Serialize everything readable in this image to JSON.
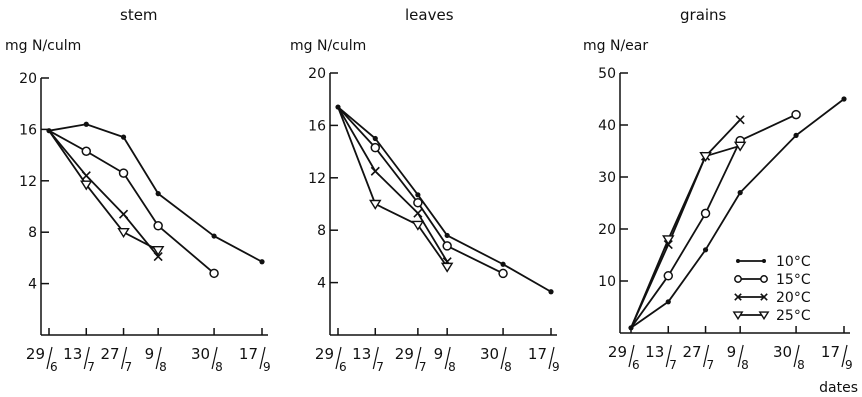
{
  "chart_data": [
    {
      "type": "line",
      "title": "stem",
      "ylabel": "mg N/culm",
      "ylim": [
        0,
        20
      ],
      "yticks": [
        4,
        8,
        12,
        16,
        20
      ],
      "x_tick_labels": [
        [
          "29",
          "6"
        ],
        [
          "13",
          "7"
        ],
        [
          "27",
          "7"
        ],
        [
          "9",
          "8"
        ],
        [
          "30",
          "8"
        ],
        [
          "17",
          "9"
        ]
      ],
      "series": [
        {
          "name": "10°C",
          "marker": "dot",
          "x": [
            "29/6",
            "13/7",
            "27/7",
            "9/8",
            "30/8",
            "17/9"
          ],
          "values": [
            15.9,
            16.4,
            15.4,
            11.0,
            7.7,
            5.7
          ]
        },
        {
          "name": "15°C",
          "marker": "circle",
          "x": [
            "29/6",
            "13/7",
            "27/7",
            "9/8",
            "30/8"
          ],
          "values": [
            15.9,
            14.3,
            12.6,
            8.5,
            4.8
          ]
        },
        {
          "name": "20°C",
          "marker": "cross",
          "x": [
            "29/6",
            "13/7",
            "27/7",
            "9/8"
          ],
          "values": [
            15.9,
            12.4,
            9.4,
            6.1
          ]
        },
        {
          "name": "25°C",
          "marker": "triangle-down",
          "x": [
            "29/6",
            "13/7",
            "27/7",
            "9/8"
          ],
          "values": [
            15.9,
            11.7,
            8.0,
            6.6
          ]
        }
      ]
    },
    {
      "type": "line",
      "title": "leaves",
      "ylabel": "mg N/culm",
      "ylim": [
        0,
        20
      ],
      "yticks": [
        4,
        8,
        12,
        16,
        20
      ],
      "x_tick_labels": [
        [
          "29",
          "6"
        ],
        [
          "13",
          "7"
        ],
        [
          "29",
          "7"
        ],
        [
          "9",
          "8"
        ],
        [
          "30",
          "8"
        ],
        [
          "17",
          "9"
        ]
      ],
      "series": [
        {
          "name": "10°C",
          "marker": "dot",
          "x": [
            "29/6",
            "13/7",
            "29/7",
            "9/8",
            "30/8",
            "17/9"
          ],
          "values": [
            17.4,
            15.0,
            10.7,
            7.6,
            5.4,
            3.3
          ]
        },
        {
          "name": "15°C",
          "marker": "circle",
          "x": [
            "29/6",
            "13/7",
            "29/7",
            "9/8",
            "30/8"
          ],
          "values": [
            17.4,
            14.3,
            10.1,
            6.8,
            4.7
          ]
        },
        {
          "name": "20°C",
          "marker": "cross",
          "x": [
            "29/6",
            "13/7",
            "29/7",
            "9/8"
          ],
          "values": [
            17.4,
            12.5,
            9.3,
            5.6
          ]
        },
        {
          "name": "25°C",
          "marker": "triangle-down",
          "x": [
            "29/6",
            "13/7",
            "29/7",
            "9/8"
          ],
          "values": [
            17.4,
            10.0,
            8.4,
            5.2
          ]
        }
      ]
    },
    {
      "type": "line",
      "title": "grains",
      "ylabel": "mg N/ear",
      "xlabel": "dates",
      "ylim": [
        0,
        50
      ],
      "yticks": [
        10,
        20,
        30,
        40,
        50
      ],
      "x_tick_labels": [
        [
          "29",
          "6"
        ],
        [
          "13",
          "7"
        ],
        [
          "27",
          "7"
        ],
        [
          "9",
          "8"
        ],
        [
          "30",
          "8"
        ],
        [
          "17",
          "9"
        ]
      ],
      "legend": {
        "position": "right"
      },
      "series": [
        {
          "name": "10°C",
          "marker": "dot",
          "x": [
            "29/6",
            "13/7",
            "27/7",
            "9/8",
            "30/8",
            "17/9"
          ],
          "values": [
            1,
            6,
            16,
            27,
            38,
            45
          ]
        },
        {
          "name": "15°C",
          "marker": "circle",
          "x": [
            "29/6",
            "13/7",
            "27/7",
            "9/8",
            "30/8"
          ],
          "values": [
            1,
            11,
            23,
            37,
            42
          ]
        },
        {
          "name": "20°C",
          "marker": "cross",
          "x": [
            "29/6",
            "13/7",
            "27/7",
            "9/8"
          ],
          "values": [
            1,
            17,
            34,
            41
          ]
        },
        {
          "name": "25°C",
          "marker": "triangle-down",
          "x": [
            "29/6",
            "13/7",
            "27/7",
            "9/8"
          ],
          "values": [
            1,
            18,
            34,
            36
          ]
        }
      ]
    }
  ]
}
